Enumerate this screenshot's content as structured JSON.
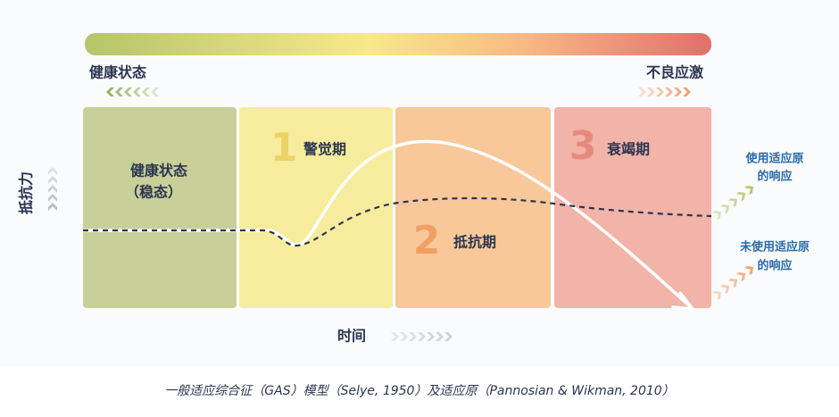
{
  "scale": {
    "left": "健康状态",
    "right": "不良应激"
  },
  "axes": {
    "y": "抵抗力",
    "x": "时间"
  },
  "phases": [
    {
      "label": "健康状态",
      "sublabel": "（稳态）"
    },
    {
      "number": "1",
      "label": "警觉期"
    },
    {
      "number": "2",
      "label": "抵抗期"
    },
    {
      "number": "3",
      "label": "衰竭期"
    }
  ],
  "responses": [
    {
      "lines": [
        "使用适应原",
        "的响应"
      ]
    },
    {
      "lines": [
        "未使用适应原",
        "的响应"
      ]
    }
  ],
  "caption": "一般适应综合征（GAS）模型（Selye, 1950）及适应原（Pannosian & Wikman, 2010）"
}
